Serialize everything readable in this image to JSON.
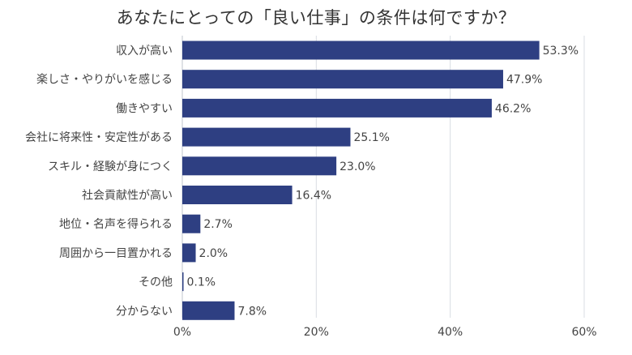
{
  "chart_data": {
    "type": "bar",
    "orientation": "horizontal",
    "title": "あなたにとっての「良い仕事」の条件は何ですか？",
    "categories": [
      "収入が高い",
      "楽しさ・やりがいを感じる",
      "働きやすい",
      "会社に将来性・安定性がある",
      "スキル・経験が身につく",
      "社会貢献性が高い",
      "地位・名声を得られる",
      "周囲から一目置かれる",
      "その他",
      "分からない"
    ],
    "values": [
      53.3,
      47.9,
      46.2,
      25.1,
      23.0,
      16.4,
      2.7,
      2.0,
      0.1,
      7.8
    ],
    "value_labels": [
      "53.3%",
      "47.9%",
      "46.2%",
      "25.1%",
      "23.0%",
      "16.4%",
      "2.7%",
      "2.0%",
      "0.1%",
      "7.8%"
    ],
    "xlim": [
      0,
      60
    ],
    "xticks": [
      0,
      20,
      40,
      60
    ],
    "xtick_labels": [
      "0%",
      "20%",
      "40%",
      "60%"
    ],
    "grid": true,
    "legend": "none",
    "bar_color": "#2e3f82"
  }
}
